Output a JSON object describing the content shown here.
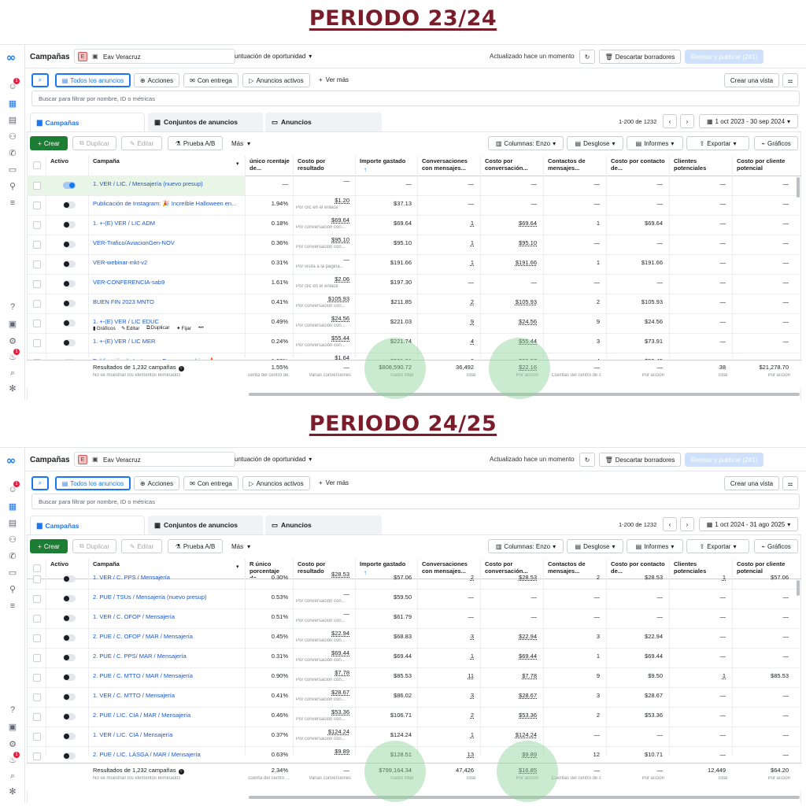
{
  "headings": {
    "p1": "PERIODO 23/24",
    "p2": "PERIODO 24/25"
  },
  "ui": {
    "page_title": "Campañas",
    "account_letter": "E",
    "account_name": "Eav Veracruz",
    "optimization": "untuación de oportunidad",
    "updated": "Actualizado hace un momento",
    "discard": "Descartar borradores",
    "publish": "Revisar y publicar (241)",
    "filter_all": "Todos los anuncios",
    "filter_actions": "Acciones",
    "filter_delivery": "Con entrega",
    "filter_active": "Anuncios activos",
    "filter_more": "Ver más",
    "create_view": "Crear una vista",
    "search_placeholder": "Buscar para filtrar por nombre, ID o métricas",
    "tab_campaigns": "Campañas",
    "tab_adsets": "Conjuntos de anuncios",
    "tab_ads": "Anuncios",
    "pagination": "1-200 de 1232",
    "btn_create": "Crear",
    "btn_duplicate": "Duplicar",
    "btn_edit": "Editar",
    "btn_ab": "Prueba A/B",
    "btn_more": "Más",
    "btn_columns": "Columnas: Enzo",
    "btn_breakdown": "Desglose",
    "btn_reports": "Informes",
    "btn_export": "Exportar",
    "btn_charts": "Gráficos",
    "columns": [
      "Activo",
      "Campaña",
      "R único porcentaje de...",
      "Costo por resultado",
      "Importe gastado",
      "Conversaciones con mensajes...",
      "Costo por conversación...",
      "Contactos de mensajes...",
      "Costo por contacto de...",
      "Clientes potenciales",
      "Costo por cliente potencial"
    ],
    "col3_p1": "único\nrcentaje de...",
    "totals_label": "Resultados de 1,232 campañas",
    "totals_sub": "No se muestran los elementos eliminados",
    "row_actions": [
      "Gráficos",
      "Editar",
      "Duplicar",
      "Fijar",
      "•••"
    ]
  },
  "period1": {
    "date_range": "1 oct 2023 - 30 sep 2024",
    "rows": [
      {
        "name": "1. VER / LIC. / Mensajería (nuevo presup)",
        "on": true,
        "r": "—",
        "cpr": "—",
        "cpr_sub": "",
        "spend": "—",
        "conv": "—",
        "cpc": "—",
        "contacts": "—",
        "cpct": "—",
        "leads": "—",
        "cpl": "—"
      },
      {
        "name": "Publicación de Instagram: 🎉 Increíble Halloween en...",
        "on": false,
        "r": "1.94%",
        "cpr": "$1.20",
        "cpr_sub": "Por clic en el enlace",
        "spend": "$37.13",
        "conv": "—",
        "cpc": "—",
        "contacts": "—",
        "cpct": "—",
        "leads": "—",
        "cpl": "—"
      },
      {
        "name": "1. +-(E) VER / LIC ADM",
        "on": false,
        "r": "0.18%",
        "cpr": "$69.64",
        "cpr_sub": "Por conversación con...",
        "spend": "$69.64",
        "conv": "1",
        "cpc": "$69.64",
        "contacts": "1",
        "cpct": "$69.64",
        "leads": "—",
        "cpl": "—"
      },
      {
        "name": "VER-Trafico/AviacionGen-NOV",
        "on": false,
        "r": "0.36%",
        "cpr": "$95.10",
        "cpr_sub": "Por conversación con...",
        "spend": "$95.10",
        "conv": "1",
        "cpc": "$95.10",
        "contacts": "—",
        "cpct": "—",
        "leads": "—",
        "cpl": "—"
      },
      {
        "name": "VER-webinar-mkt-v2",
        "on": false,
        "r": "0.31%",
        "cpr": "—",
        "cpr_sub": "Por visita a la página...",
        "spend": "$191.66",
        "conv": "1",
        "cpc": "$191.66",
        "contacts": "1",
        "cpct": "$191.66",
        "leads": "—",
        "cpl": "—"
      },
      {
        "name": "VER-CONFERENCIA-sab9",
        "on": false,
        "r": "1.61%",
        "cpr": "$2.06",
        "cpr_sub": "Por clic en el enlace",
        "spend": "$197.30",
        "conv": "—",
        "cpc": "—",
        "contacts": "—",
        "cpct": "—",
        "leads": "—",
        "cpl": "—"
      },
      {
        "name": "BUEN FIN 2023 MNTO",
        "on": false,
        "r": "0.41%",
        "cpr": "$105.93",
        "cpr_sub": "Por conversación con...",
        "spend": "$211.85",
        "conv": "2",
        "cpc": "$105.93",
        "contacts": "2",
        "cpct": "$105.93",
        "leads": "—",
        "cpl": "—"
      },
      {
        "name": "1. +-(E) VER / LIC EDUC",
        "on": false,
        "r": "0.49%",
        "cpr": "$24.56",
        "cpr_sub": "Por conversación con...",
        "spend": "$221.03",
        "conv": "9",
        "cpc": "$24.56",
        "contacts": "9",
        "cpct": "$24.56",
        "leads": "—",
        "cpl": "—"
      },
      {
        "name": "1. +-(E) VER / LIC MER",
        "on": false,
        "r": "0.24%",
        "cpr": "$55.44",
        "cpr_sub": "Por conversación con...",
        "spend": "$221.74",
        "conv": "4",
        "cpc": "$55.44",
        "contacts": "3",
        "cpct": "$73.91",
        "leads": "—",
        "cpl": "—"
      },
      {
        "name": "Publicación de Instagram: Fuego en cabina 🔥...",
        "on": false,
        "r": "1.08%",
        "cpr": "$1.64",
        "cpr_sub": "",
        "spend": "$221.81",
        "conv": "6",
        "cpc": "$36.97",
        "contacts": "4",
        "cpct": "$55.45",
        "leads": "—",
        "cpl": "—"
      }
    ],
    "totals": {
      "r": "1.55%",
      "r_sub": "uenta del centro de...",
      "cpr": "—",
      "cpr_sub": "Varias conversiones",
      "spend": "$808,590.72",
      "spend_sub": "Gasto total",
      "conv": "36,492",
      "conv_sub": "Total",
      "cpc": "$22.16",
      "cpc_sub": "Por acción",
      "contacts": "—",
      "contacts_sub": "Cuentas del centro de c",
      "cpct": "—",
      "cpct_sub": "Por acción",
      "leads": "38",
      "leads_sub": "Total",
      "cpl": "$21,278.70",
      "cpl_sub": "Por acción"
    }
  },
  "period2": {
    "date_range": "1 oct 2024 - 31 ago 2025",
    "rows": [
      {
        "name": "1. VER / C. PPS / Mensajería",
        "on": false,
        "r": "0.30%",
        "cpr": "$28.53",
        "cpr_sub": "",
        "spend": "$57.06",
        "conv": "2",
        "cpc": "$28.53",
        "contacts": "2",
        "cpct": "$28.53",
        "leads": "1",
        "cpl": "$57.06"
      },
      {
        "name": "2. PUE / TSUs / Mensajería (nuevo presup)",
        "on": false,
        "r": "0.53%",
        "cpr": "—",
        "cpr_sub": "Por conversación con...",
        "spend": "$59.50",
        "conv": "—",
        "cpc": "—",
        "contacts": "—",
        "cpct": "—",
        "leads": "—",
        "cpl": "—"
      },
      {
        "name": "1. VER / C. OFOP / Mensajería",
        "on": false,
        "r": "0.51%",
        "cpr": "—",
        "cpr_sub": "Por conversación con...",
        "spend": "$61.79",
        "conv": "—",
        "cpc": "—",
        "contacts": "—",
        "cpct": "—",
        "leads": "—",
        "cpl": "—"
      },
      {
        "name": "2. PUE / C. OFOP / MAR / Mensajería",
        "on": false,
        "r": "0.45%",
        "cpr": "$22.94",
        "cpr_sub": "Por conversación con...",
        "spend": "$68.83",
        "conv": "3",
        "cpc": "$22.94",
        "contacts": "3",
        "cpct": "$22.94",
        "leads": "—",
        "cpl": "—"
      },
      {
        "name": "2. PUE / C. PPS/ MAR / Mensajería",
        "on": false,
        "r": "0.31%",
        "cpr": "$69.44",
        "cpr_sub": "Por conversación con...",
        "spend": "$69.44",
        "conv": "1",
        "cpc": "$69.44",
        "contacts": "1",
        "cpct": "$69.44",
        "leads": "—",
        "cpl": "—"
      },
      {
        "name": "2. PUE / C. MTTO / MAR / Mensajería",
        "on": false,
        "r": "0.90%",
        "cpr": "$7.78",
        "cpr_sub": "Por conversación con...",
        "spend": "$85.53",
        "conv": "11",
        "cpc": "$7.78",
        "contacts": "9",
        "cpct": "$9.50",
        "leads": "1",
        "cpl": "$85.53"
      },
      {
        "name": "1. VER / C. MTTO / Mensajería",
        "on": false,
        "r": "0.41%",
        "cpr": "$28.67",
        "cpr_sub": "Por conversación con...",
        "spend": "$86.02",
        "conv": "3",
        "cpc": "$28.67",
        "contacts": "3",
        "cpct": "$28.67",
        "leads": "—",
        "cpl": "—"
      },
      {
        "name": "2. PUE / LIC. CIA / MAR / Mensajería",
        "on": false,
        "r": "0.46%",
        "cpr": "$53.36",
        "cpr_sub": "Por conversación con...",
        "spend": "$106.71",
        "conv": "2",
        "cpc": "$53.36",
        "contacts": "2",
        "cpct": "$53.36",
        "leads": "—",
        "cpl": "—"
      },
      {
        "name": "1. VER / LIC. CIA / Mensajería",
        "on": false,
        "r": "0.37%",
        "cpr": "$124.24",
        "cpr_sub": "Por conversación con...",
        "spend": "$124.24",
        "conv": "1",
        "cpc": "$124.24",
        "contacts": "—",
        "cpct": "—",
        "leads": "—",
        "cpl": "—"
      },
      {
        "name": "2. PUE / LIC. LASGA / MAR / Mensajería",
        "on": false,
        "r": "0.63%",
        "cpr": "$9.89",
        "cpr_sub": "",
        "spend": "$128.51",
        "conv": "13",
        "cpc": "$9.89",
        "contacts": "12",
        "cpct": "$10.71",
        "leads": "—",
        "cpl": "—"
      }
    ],
    "totals": {
      "r": "2.34%",
      "r_sub": "cuenta del centro ...",
      "cpr": "—",
      "cpr_sub": "Varias conversiones",
      "spend": "$799,164.34",
      "spend_sub": "Gasto total",
      "conv": "47,426",
      "conv_sub": "Total",
      "cpc": "$16.85",
      "cpc_sub": "Por acción",
      "contacts": "—",
      "contacts_sub": "Cuentas del centro de c",
      "cpct": "—",
      "cpct_sub": "Por acción",
      "leads": "12,449",
      "leads_sub": "Total",
      "cpl": "$64.20",
      "cpl_sub": "Por acción"
    }
  }
}
